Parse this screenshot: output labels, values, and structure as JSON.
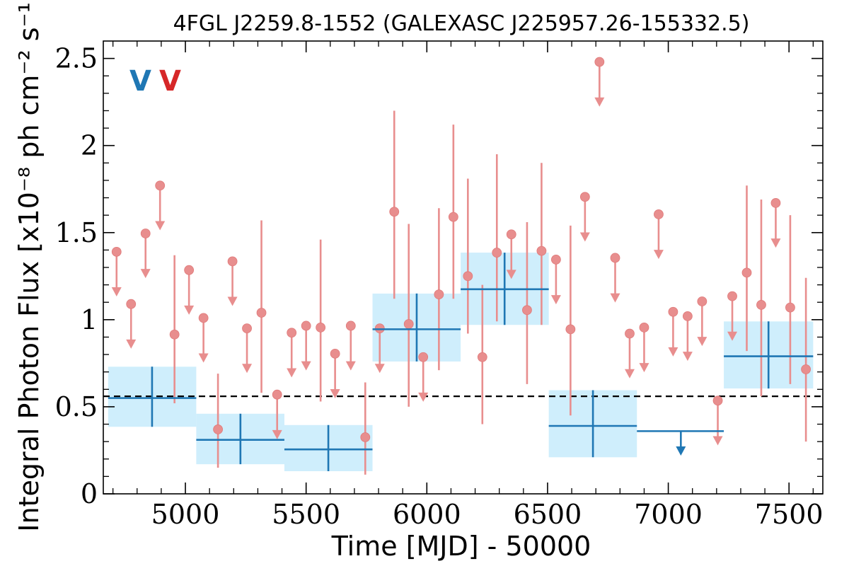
{
  "chart_data": {
    "type": "scatter",
    "title": "4FGL J2259.8-1552 (GALEXASC J225957.26-155332.5)",
    "xlabel": "Time [MJD] - 50000",
    "ylabel": "Integral Photon Flux [x10⁻⁸ ph cm⁻² s⁻¹]",
    "xlim": [
      4660,
      7640
    ],
    "ylim": [
      0,
      2.6
    ],
    "x_ticks": [
      {
        "value": 5000,
        "label": "5000"
      },
      {
        "value": 5500,
        "label": "5500"
      },
      {
        "value": 6000,
        "label": "6000"
      },
      {
        "value": 6500,
        "label": "6500"
      },
      {
        "value": 7000,
        "label": "7000"
      },
      {
        "value": 7500,
        "label": "7500"
      }
    ],
    "y_ticks": [
      {
        "value": 0,
        "label": "0"
      },
      {
        "value": 0.5,
        "label": "0.5"
      },
      {
        "value": 1,
        "label": "1"
      },
      {
        "value": 1.5,
        "label": "1.5"
      },
      {
        "value": 2,
        "label": "2"
      },
      {
        "value": 2.5,
        "label": "2.5"
      }
    ],
    "legend": [
      {
        "text": "V",
        "color": "#1f77b4"
      },
      {
        "text": "V",
        "color": "#d62728"
      }
    ],
    "mean_flux": 0.56,
    "colors": {
      "blue_series": "#1f77b4",
      "blue_band": "#cfeefc",
      "red_series": "#e88e8e",
      "mean_line": "#000000"
    },
    "blue_bins": [
      {
        "x_start": 4680,
        "x_end": 5045,
        "x": 4862,
        "y": 0.55,
        "y_low": 0.385,
        "y_high": 0.73,
        "upper_limit": false
      },
      {
        "x_start": 5045,
        "x_end": 5410,
        "x": 5228,
        "y": 0.31,
        "y_low": 0.17,
        "y_high": 0.46,
        "upper_limit": false
      },
      {
        "x_start": 5410,
        "x_end": 5775,
        "x": 5592,
        "y": 0.255,
        "y_low": 0.13,
        "y_high": 0.395,
        "upper_limit": false
      },
      {
        "x_start": 5775,
        "x_end": 6140,
        "x": 5958,
        "y": 0.945,
        "y_low": 0.76,
        "y_high": 1.15,
        "upper_limit": false
      },
      {
        "x_start": 6140,
        "x_end": 6505,
        "x": 6322,
        "y": 1.175,
        "y_low": 0.97,
        "y_high": 1.385,
        "upper_limit": false
      },
      {
        "x_start": 6505,
        "x_end": 6870,
        "x": 6688,
        "y": 0.39,
        "y_low": 0.21,
        "y_high": 0.595,
        "upper_limit": false
      },
      {
        "x_start": 6870,
        "x_end": 7230,
        "x": 7052,
        "y": 0.36,
        "y_low": null,
        "y_high": null,
        "upper_limit": true
      },
      {
        "x_start": 7230,
        "x_end": 7600,
        "x": 7415,
        "y": 0.79,
        "y_low": 0.605,
        "y_high": 0.99,
        "upper_limit": false
      }
    ],
    "red_points": [
      {
        "x": 4715,
        "y": 1.39,
        "upper_limit": true
      },
      {
        "x": 4775,
        "y": 1.09,
        "upper_limit": true
      },
      {
        "x": 4835,
        "y": 1.495,
        "upper_limit": true
      },
      {
        "x": 4895,
        "y": 1.77,
        "upper_limit": true
      },
      {
        "x": 4955,
        "y": 0.915,
        "y_low": 0.52,
        "y_high": 1.37,
        "upper_limit": false
      },
      {
        "x": 5015,
        "y": 1.285,
        "upper_limit": true
      },
      {
        "x": 5075,
        "y": 1.01,
        "upper_limit": true
      },
      {
        "x": 5135,
        "y": 0.37,
        "y_low": 0.15,
        "y_high": 0.69,
        "upper_limit": false
      },
      {
        "x": 5195,
        "y": 1.335,
        "upper_limit": true
      },
      {
        "x": 5255,
        "y": 0.95,
        "upper_limit": true
      },
      {
        "x": 5315,
        "y": 1.04,
        "y_low": 0.58,
        "y_high": 1.57,
        "upper_limit": false
      },
      {
        "x": 5380,
        "y": 0.57,
        "upper_limit": true
      },
      {
        "x": 5440,
        "y": 0.925,
        "upper_limit": true
      },
      {
        "x": 5500,
        "y": 0.965,
        "upper_limit": true
      },
      {
        "x": 5560,
        "y": 0.955,
        "y_low": 0.53,
        "y_high": 1.46,
        "upper_limit": false
      },
      {
        "x": 5620,
        "y": 0.805,
        "upper_limit": true
      },
      {
        "x": 5685,
        "y": 0.965,
        "upper_limit": true
      },
      {
        "x": 5745,
        "y": 0.325,
        "y_low": 0.11,
        "y_high": 0.64,
        "upper_limit": false
      },
      {
        "x": 5805,
        "y": 0.95,
        "upper_limit": true
      },
      {
        "x": 5865,
        "y": 1.62,
        "y_low": 1.12,
        "y_high": 2.2,
        "upper_limit": false
      },
      {
        "x": 5925,
        "y": 0.975,
        "y_low": 0.5,
        "y_high": 1.55,
        "upper_limit": false
      },
      {
        "x": 5985,
        "y": 0.785,
        "upper_limit": true
      },
      {
        "x": 6050,
        "y": 1.145,
        "y_low": 0.71,
        "y_high": 1.64,
        "upper_limit": false
      },
      {
        "x": 6110,
        "y": 1.59,
        "y_low": 1.12,
        "y_high": 2.12,
        "upper_limit": false
      },
      {
        "x": 6170,
        "y": 1.25,
        "y_low": 0.92,
        "y_high": 1.81,
        "upper_limit": false
      },
      {
        "x": 6230,
        "y": 0.785,
        "y_low": 0.4,
        "y_high": 1.2,
        "upper_limit": false
      },
      {
        "x": 6290,
        "y": 1.385,
        "y_low": 0.99,
        "y_high": 1.95,
        "upper_limit": false
      },
      {
        "x": 6350,
        "y": 1.49,
        "upper_limit": true
      },
      {
        "x": 6415,
        "y": 1.055,
        "y_low": 0.63,
        "y_high": 1.56,
        "upper_limit": false
      },
      {
        "x": 6475,
        "y": 1.395,
        "y_low": 0.97,
        "y_high": 1.9,
        "upper_limit": false
      },
      {
        "x": 6535,
        "y": 1.345,
        "upper_limit": true
      },
      {
        "x": 6595,
        "y": 0.945,
        "y_low": 0.45,
        "y_high": 1.54,
        "upper_limit": false
      },
      {
        "x": 6655,
        "y": 1.705,
        "upper_limit": true
      },
      {
        "x": 6715,
        "y": 2.48,
        "upper_limit": true
      },
      {
        "x": 6780,
        "y": 1.355,
        "upper_limit": true
      },
      {
        "x": 6840,
        "y": 0.92,
        "upper_limit": true
      },
      {
        "x": 6900,
        "y": 0.955,
        "upper_limit": true
      },
      {
        "x": 6960,
        "y": 1.605,
        "upper_limit": true
      },
      {
        "x": 7020,
        "y": 1.045,
        "upper_limit": true
      },
      {
        "x": 7080,
        "y": 1.02,
        "upper_limit": true
      },
      {
        "x": 7140,
        "y": 1.105,
        "upper_limit": true
      },
      {
        "x": 7205,
        "y": 0.535,
        "upper_limit": true
      },
      {
        "x": 7265,
        "y": 1.135,
        "upper_limit": true
      },
      {
        "x": 7325,
        "y": 1.27,
        "y_low": 0.82,
        "y_high": 1.77,
        "upper_limit": false
      },
      {
        "x": 7385,
        "y": 1.085,
        "y_low": 0.56,
        "y_high": 1.69,
        "upper_limit": false
      },
      {
        "x": 7445,
        "y": 1.67,
        "upper_limit": true
      },
      {
        "x": 7505,
        "y": 1.07,
        "y_low": 0.63,
        "y_high": 1.6,
        "upper_limit": false
      },
      {
        "x": 7570,
        "y": 0.715,
        "y_low": 0.3,
        "y_high": 1.24,
        "upper_limit": false
      }
    ]
  }
}
